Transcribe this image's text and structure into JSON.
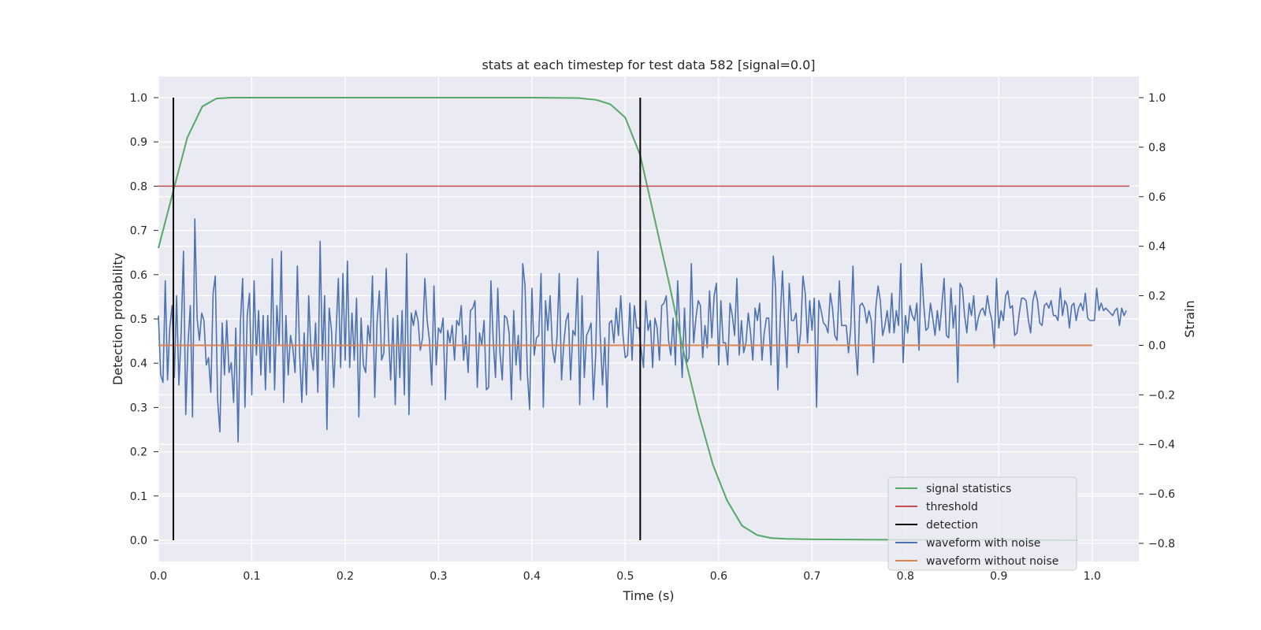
{
  "chart_data": {
    "type": "line",
    "title": "stats at each timestep for test data 582 [signal=0.0]",
    "xlabel": "Time (s)",
    "ylabel_left": "Detection probability",
    "ylabel_right": "Strain",
    "xlim": [
      0.0,
      1.05
    ],
    "ylim_left": [
      -0.048,
      1.048
    ],
    "ylim_right": [
      -0.8,
      1.0
    ],
    "grid": true,
    "legend_position": "lower right",
    "x_ticks": [
      "0.0",
      "0.1",
      "0.2",
      "0.3",
      "0.4",
      "0.5",
      "0.6",
      "0.7",
      "0.8",
      "0.9",
      "1.0"
    ],
    "y_ticks_left": [
      "0.0",
      "0.1",
      "0.2",
      "0.3",
      "0.4",
      "0.5",
      "0.6",
      "0.7",
      "0.8",
      "0.9",
      "1.0"
    ],
    "y_ticks_right": [
      "−0.8",
      "−0.6",
      "−0.4",
      "−0.2",
      "0.0",
      "0.2",
      "0.4",
      "0.6",
      "0.8",
      "1.0"
    ],
    "colors": {
      "signal_statistics": "#55a868",
      "threshold": "#c44e52",
      "detection": "#000000",
      "waveform_with_noise": "#4c72b0",
      "waveform_without_noise": "#dd8452",
      "plot_background": "#eaeaf2",
      "grid": "#ffffff"
    },
    "series": [
      {
        "name": "signal statistics",
        "axis": "left",
        "x": [
          0.0,
          0.016,
          0.031,
          0.047,
          0.062,
          0.078,
          0.094,
          0.2,
          0.3,
          0.4,
          0.45,
          0.469,
          0.484,
          0.5,
          0.516,
          0.531,
          0.547,
          0.562,
          0.578,
          0.594,
          0.609,
          0.625,
          0.641,
          0.656,
          0.672,
          0.7,
          0.8,
          0.9,
          0.984
        ],
        "y": [
          0.66,
          0.79,
          0.91,
          0.98,
          0.998,
          1.0,
          1.0,
          1.0,
          1.0,
          1.0,
          0.999,
          0.995,
          0.985,
          0.955,
          0.87,
          0.73,
          0.58,
          0.43,
          0.29,
          0.17,
          0.09,
          0.033,
          0.012,
          0.005,
          0.003,
          0.002,
          0.001,
          0.001,
          0.0
        ]
      },
      {
        "name": "threshold",
        "axis": "left",
        "x": [
          0.0,
          1.04
        ],
        "y": [
          0.8,
          0.8
        ]
      },
      {
        "name": "detection",
        "axis": "left",
        "segments": [
          {
            "x": 0.016,
            "y": [
              0.0,
              1.0
            ]
          },
          {
            "x": 0.516,
            "y": [
              0.0,
              1.0
            ]
          }
        ]
      },
      {
        "name": "waveform with noise",
        "axis": "right",
        "x_range": [
          0.0,
          0.9995
        ],
        "x_step": 0.0024390243902439024,
        "y": [
          0.12,
          -0.12,
          -0.15,
          0.26,
          -0.14,
          0.07,
          0.16,
          -0.13,
          0.2,
          -0.16,
          0.05,
          0.38,
          -0.28,
          0.01,
          0.16,
          -0.29,
          0.51,
          0.11,
          0.02,
          0.13,
          0.1,
          -0.08,
          -0.05,
          -0.19,
          0.21,
          0.28,
          -0.22,
          -0.35,
          0.09,
          -0.12,
          0.1,
          -0.11,
          -0.07,
          -0.23,
          0.07,
          -0.39,
          0.09,
          0.27,
          -0.25,
          0.12,
          0.21,
          -0.2,
          0.26,
          -0.04,
          0.14,
          -0.12,
          0.12,
          -0.18,
          0.12,
          -0.11,
          0.35,
          -0.18,
          0.16,
          0.0,
          0.38,
          -0.23,
          0.12,
          -0.12,
          0.04,
          -0.01,
          -0.11,
          0.32,
          -0.04,
          -0.23,
          0.05,
          -0.2,
          0.2,
          -0.03,
          -0.1,
          0.09,
          -0.19,
          0.42,
          -0.06,
          0.2,
          -0.34,
          0.15,
          0.06,
          -0.17,
          0.05,
          0.27,
          -0.09,
          0.29,
          -0.06,
          0.34,
          -0.09,
          0.13,
          -0.06,
          0.19,
          -0.29,
          0.11,
          -0.08,
          -0.11,
          0.08,
          0.01,
          0.28,
          -0.21,
          0.09,
          0.22,
          -0.06,
          -0.03,
          0.31,
          0.04,
          -0.14,
          0.11,
          -0.24,
          0.12,
          -0.13,
          0.14,
          -0.2,
          0.37,
          -0.28,
          0.13,
          0.08,
          0.14,
          0.1,
          -0.02,
          0.03,
          0.27,
          0.1,
          0.02,
          -0.16,
          0.24,
          -0.08,
          0.07,
          0.05,
          0.11,
          -0.22,
          0.06,
          0.01,
          0.08,
          -0.06,
          0.1,
          0.08,
          0.16,
          -0.06,
          0.04,
          -0.11,
          0.14,
          0.15,
          0.18,
          -0.17,
          0.05,
          0.0,
          0.1,
          -0.18,
          -0.17,
          0.26,
          0.02,
          -0.13,
          0.23,
          -0.03,
          -0.14,
          0.12,
          0.11,
          0.05,
          -0.22,
          0.14,
          -0.08,
          0.04,
          -0.14,
          0.33,
          0.24,
          -0.11,
          -0.26,
          0.23,
          -0.04,
          0.03,
          0.04,
          0.29,
          -0.25,
          0.18,
          0.06,
          0.2,
          -0.01,
          -0.07,
          0.03,
          0.29,
          -0.14,
          0.01,
          0.1,
          0.13,
          -0.14,
          0.06,
          0.04,
          0.27,
          -0.24,
          0.2,
          -0.13,
          0.04,
          0.06,
          0.09,
          -0.22,
          -0.04,
          0.38,
          0.04,
          -0.16,
          0.03,
          -0.25,
          0.09,
          0.1,
          0.01,
          0.15,
          0.04,
          0.2,
          0.04,
          -0.05,
          -0.04,
          0.17,
          -0.06,
          0.16,
          0.07,
          0.07,
          -0.02,
          -0.09,
          0.18,
          0.06,
          0.1,
          -0.09,
          0.11,
          0.07,
          -0.06,
          0.16,
          0.17,
          0.2,
          0.02,
          -0.04,
          0.11,
          -0.08,
          0.26,
          0.06,
          -0.13,
          0.15,
          -0.07,
          -0.05,
          0.33,
          0.01,
          0.11,
          0.18,
          0.16,
          -0.05,
          0.08,
          -0.01,
          0.22,
          0.03,
          0.2,
          0.25,
          -0.08,
          0.18,
          0.01,
          0.01,
          -0.08,
          0.17,
          0.12,
          0.04,
          0.27,
          -0.04,
          0.1,
          -0.03,
          0.01,
          0.13,
          0.05,
          -0.06,
          0.15,
          0.1,
          0.17,
          -0.06,
          0.05,
          0.11,
          0.11,
          -0.08,
          0.36,
          0.23,
          -0.18,
          0.1,
          0.3,
          0.08,
          -0.09,
          0.25,
          0.1,
          0.1,
          0.13,
          -0.03,
          0.05,
          0.28,
          0.21,
          0.01,
          0.18,
          0.06,
          0.19,
          -0.25,
          0.18,
          0.14,
          0.09,
          0.08,
          0.05,
          0.21,
          0.15,
          0.04,
          0.02,
          0.26,
          0.08,
          0.08,
          0.08,
          -0.03,
          0.07,
          0.32,
          0.01,
          -0.12,
          0.16,
          0.17,
          0.15,
          0.09,
          0.14,
          0.1,
          -0.07,
          0.15,
          0.24,
          0.18,
          0.04,
          0.08,
          0.14,
          0.05,
          0.21,
          0.05,
          0.14,
          0.08,
          0.33,
          -0.07,
          0.12,
          0.05,
          0.16,
          0.12,
          0.1,
          0.17,
          -0.02,
          0.33,
          0.17,
          0.06,
          0.07,
          0.17,
          0.11,
          0.04,
          0.14,
          0.06,
          0.16,
          0.27,
          0.04,
          0.03,
          0.23,
          0.07,
          0.16,
          -0.15,
          0.25,
          0.23,
          0.12,
          0.05,
          0.17,
          0.12,
          0.2,
          0.06,
          0.11,
          0.14,
          0.15,
          0.12,
          0.2,
          0.14,
          0.1,
          -0.01,
          0.27,
          0.07,
          0.14,
          0.1,
          0.2,
          0.22,
          0.15,
          0.16,
          0.04,
          0.05,
          0.13,
          0.19,
          0.19,
          0.18,
          0.1,
          0.05,
          0.18,
          0.22,
          0.18,
          0.09,
          0.08,
          0.16,
          0.17,
          0.15,
          0.18,
          0.12,
          0.12,
          0.1,
          0.23,
          0.12,
          0.18,
          0.16,
          0.07,
          0.16,
          0.17,
          0.1,
          0.15,
          0.17,
          0.14,
          0.21,
          0.11,
          0.1,
          0.1,
          0.1,
          0.23,
          0.14,
          0.17,
          0.14,
          0.15,
          0.14,
          0.13,
          0.12,
          0.14,
          0.15,
          0.08,
          0.15,
          0.12,
          0.14
        ]
      },
      {
        "name": "waveform without noise",
        "axis": "right",
        "x": [
          0.0,
          1.0
        ],
        "y": [
          0.0,
          0.0
        ]
      }
    ],
    "legend": [
      {
        "label": "signal statistics",
        "color": "#55a868"
      },
      {
        "label": "threshold",
        "color": "#c44e52"
      },
      {
        "label": "detection",
        "color": "#000000"
      },
      {
        "label": "waveform with noise",
        "color": "#4c72b0"
      },
      {
        "label": "waveform without noise",
        "color": "#dd8452"
      }
    ]
  }
}
